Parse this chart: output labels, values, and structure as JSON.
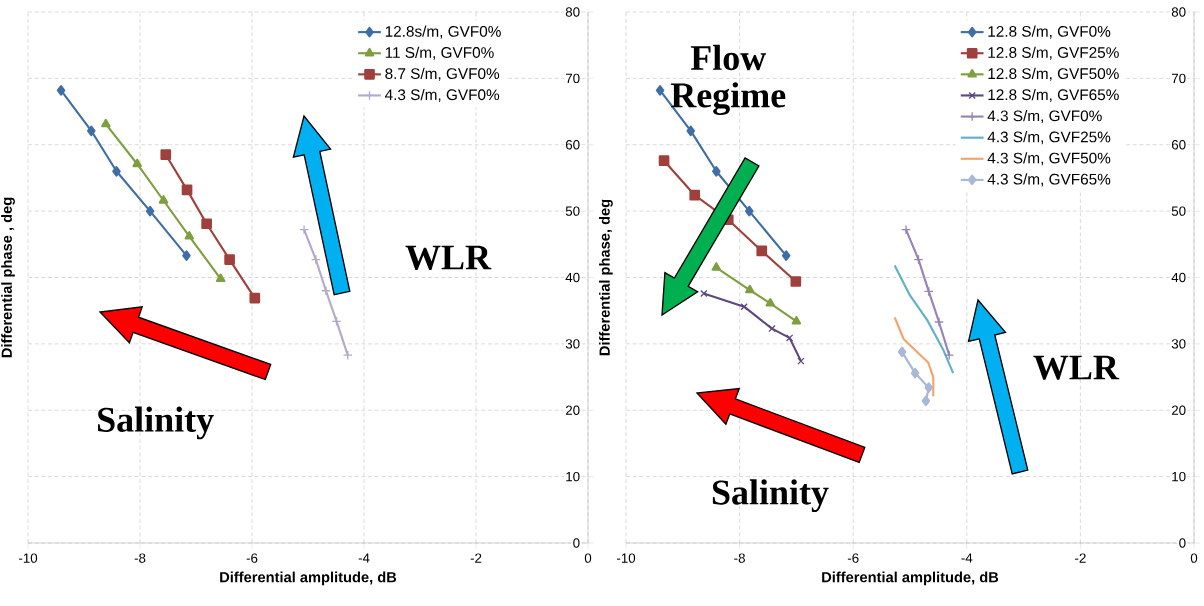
{
  "chart_data": [
    {
      "type": "line",
      "xlabel": "Differential amplitude, dB",
      "ylabel": "Differential phase , deg",
      "xlim": [
        -10,
        0
      ],
      "ylim": [
        0,
        80
      ],
      "xticks": [
        -10,
        -8,
        -6,
        -4,
        -2,
        0
      ],
      "yticks": [
        0,
        10,
        20,
        30,
        40,
        50,
        60,
        70,
        80
      ],
      "grid": true,
      "legend": "top right",
      "annotations": [
        "WLR",
        "Salinity"
      ],
      "series": [
        {
          "name": "12.8s/m, GVF0%",
          "color": "#3f6ea6",
          "marker": "diamond",
          "x": [
            -9.41,
            -8.87,
            -8.42,
            -7.82,
            -7.17
          ],
          "values": [
            68.2,
            62.1,
            56.0,
            50.0,
            43.3
          ]
        },
        {
          "name": "11 S/m, GVF0%",
          "color": "#7f9f3f",
          "marker": "triangle",
          "x": [
            -8.61,
            -8.05,
            -7.58,
            -7.12,
            -6.56
          ],
          "values": [
            63.1,
            57.1,
            51.6,
            46.2,
            39.8
          ]
        },
        {
          "name": "8.7 S/m, GVF0%",
          "color": "#a0403c",
          "marker": "square",
          "x": [
            -7.54,
            -7.16,
            -6.81,
            -6.4,
            -5.95
          ],
          "values": [
            58.5,
            53.2,
            48.1,
            42.7,
            36.9
          ]
        },
        {
          "name": "4.3 S/m, GVF0%",
          "color": "#b3a9cc",
          "marker": "plus",
          "x": [
            -5.07,
            -4.86,
            -4.68,
            -4.49,
            -4.29
          ],
          "values": [
            47.2,
            42.7,
            38.0,
            33.4,
            28.3
          ]
        }
      ]
    },
    {
      "type": "line",
      "xlabel": "Differential amplitude, dB",
      "ylabel": "Differential phase, deg",
      "xlim": [
        -10,
        0
      ],
      "ylim": [
        0,
        80
      ],
      "xticks": [
        -10,
        -8,
        -6,
        -4,
        -2,
        0
      ],
      "yticks": [
        0,
        10,
        20,
        30,
        40,
        50,
        60,
        70,
        80
      ],
      "grid": true,
      "legend": "top right",
      "annotations": [
        "Flow Regime",
        "WLR",
        "Salinity"
      ],
      "series": [
        {
          "name": "12.8 S/m, GVF0%",
          "color": "#3f6ea6",
          "marker": "diamond",
          "x": [
            -9.4,
            -8.86,
            -8.41,
            -7.83,
            -7.18
          ],
          "values": [
            68.2,
            62.1,
            56.0,
            50.0,
            43.3
          ]
        },
        {
          "name": "12.8 S/m, GVF25%",
          "color": "#a0403c",
          "marker": "square",
          "x": [
            -9.33,
            -8.79,
            -8.2,
            -7.61,
            -7.01
          ],
          "values": [
            57.6,
            52.4,
            48.7,
            44.0,
            39.4
          ]
        },
        {
          "name": "12.8 S/m, GVF50%",
          "color": "#7f9f3f",
          "marker": "triangle",
          "x": [
            -8.41,
            -7.82,
            -7.46,
            -7.0
          ],
          "values": [
            41.5,
            38.1,
            36.1,
            33.4
          ]
        },
        {
          "name": "12.8 S/m, GVF65%",
          "color": "#5e4680",
          "marker": "cross",
          "x": [
            -8.63,
            -7.92,
            -7.43,
            -7.12,
            -6.92
          ],
          "values": [
            37.6,
            35.6,
            32.3,
            30.9,
            27.4
          ]
        },
        {
          "name": "4.3 S/m, GVF0%",
          "color": "#9683b8",
          "marker": "plus",
          "x": [
            -5.07,
            -4.85,
            -4.67,
            -4.49,
            -4.31
          ],
          "values": [
            47.2,
            42.7,
            37.9,
            33.3,
            28.3
          ]
        },
        {
          "name": "4.3 S/m, GVF25%",
          "color": "#5fb0c8",
          "marker": "none",
          "x": [
            -5.27,
            -5.0,
            -4.69,
            -4.42,
            -4.24
          ],
          "values": [
            41.8,
            37.3,
            33.5,
            29.2,
            25.6
          ]
        },
        {
          "name": "4.3 S/m, GVF50%",
          "color": "#f5a36a",
          "marker": "none",
          "x": [
            -5.27,
            -5.11,
            -4.68,
            -4.59,
            -4.59
          ],
          "values": [
            34.0,
            30.7,
            27.2,
            25.0,
            22.1
          ]
        },
        {
          "name": "4.3 S/m, GVF65%",
          "color": "#a8b8d8",
          "marker": "diamond",
          "x": [
            -5.14,
            -4.91,
            -4.67,
            -4.72
          ],
          "values": [
            28.8,
            25.6,
            23.4,
            21.4
          ]
        }
      ]
    }
  ]
}
